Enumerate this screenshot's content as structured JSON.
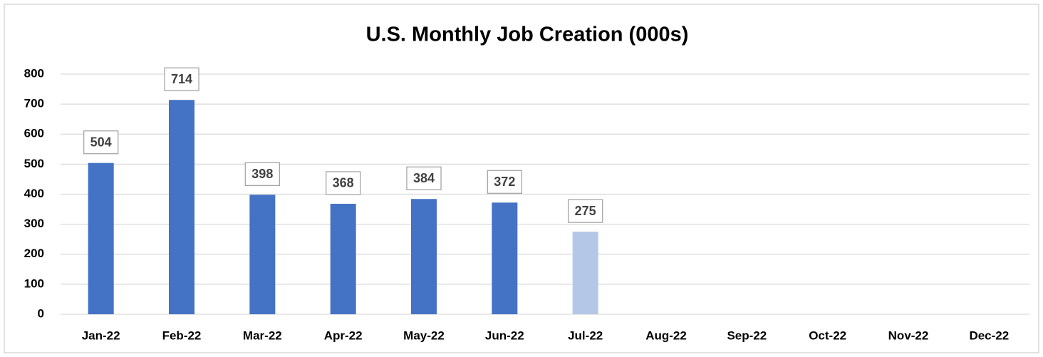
{
  "chart_data": {
    "type": "bar",
    "title": "U.S. Monthly Job Creation (000s)",
    "categories": [
      "Jan-22",
      "Feb-22",
      "Mar-22",
      "Apr-22",
      "May-22",
      "Jun-22",
      "Jul-22",
      "Aug-22",
      "Sep-22",
      "Oct-22",
      "Nov-22",
      "Dec-22"
    ],
    "values": [
      504,
      714,
      398,
      368,
      384,
      372,
      275,
      null,
      null,
      null,
      null,
      null
    ],
    "colors": [
      "#4472c4",
      "#4472c4",
      "#4472c4",
      "#4472c4",
      "#4472c4",
      "#4472c4",
      "#b4c7e7",
      null,
      null,
      null,
      null,
      null
    ],
    "ylim": [
      0,
      800
    ],
    "yticks": [
      0,
      100,
      200,
      300,
      400,
      500,
      600,
      700,
      800
    ],
    "grid": true
  }
}
